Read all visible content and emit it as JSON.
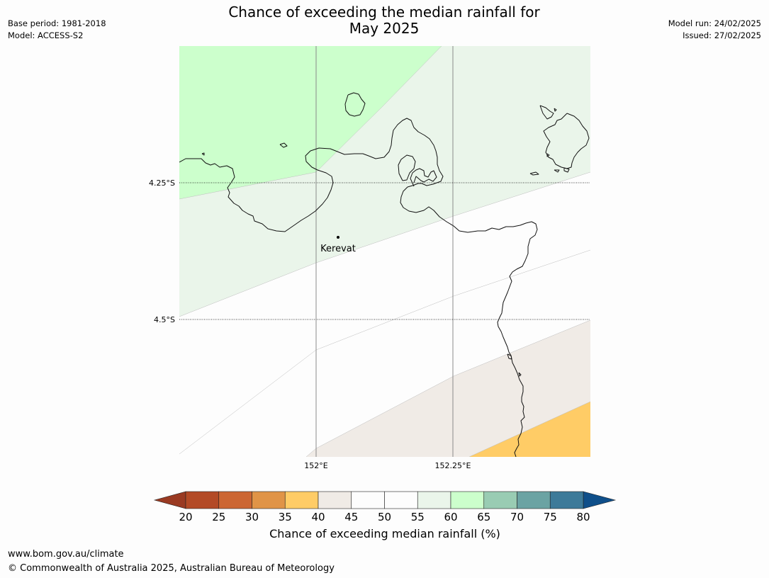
{
  "title": {
    "line1": "Chance of exceeding the median rainfall for",
    "line2": "May 2025"
  },
  "meta_left": {
    "base_period": "Base period: 1981-2018",
    "model": "Model: ACCESS-S2"
  },
  "meta_right": {
    "model_run": "Model run: 24/02/2025",
    "issued": "Issued: 27/02/2025"
  },
  "map": {
    "lat_labels": [
      "4.25°S",
      "4.5°S"
    ],
    "lon_labels": [
      "152°E",
      "152.25°E"
    ],
    "place": {
      "name": "Kerevat",
      "lon": 152.04,
      "lat": -4.35
    },
    "probability_zones": [
      {
        "range": "60-65",
        "color": "#ccffcc"
      },
      {
        "range": "55-60",
        "color": "#eaf5ea"
      },
      {
        "range": "45-55",
        "color": "#fdfdfd"
      },
      {
        "range": "40-45",
        "color": "#f0ebe6"
      },
      {
        "range": "35-40",
        "color": "#ffcc66"
      }
    ]
  },
  "colorbar": {
    "label": "Chance of exceeding median rainfall (%)",
    "ticks": [
      "20",
      "25",
      "30",
      "35",
      "40",
      "45",
      "50",
      "55",
      "60",
      "65",
      "70",
      "75",
      "80"
    ],
    "under_color": "#9a3a22",
    "over_color": "#0f4f8a",
    "colors": [
      "#b34a26",
      "#cc6633",
      "#e09447",
      "#ffcc66",
      "#f0ebe6",
      "#fdfdfd",
      "#fdfdfd",
      "#eaf5ea",
      "#ccffcc",
      "#99ccb3",
      "#6ba3a3",
      "#3d7a99"
    ]
  },
  "footer": {
    "url": "www.bom.gov.au/climate",
    "copyright": "© Commonwealth of Australia 2025, Australian Bureau of Meteorology"
  }
}
